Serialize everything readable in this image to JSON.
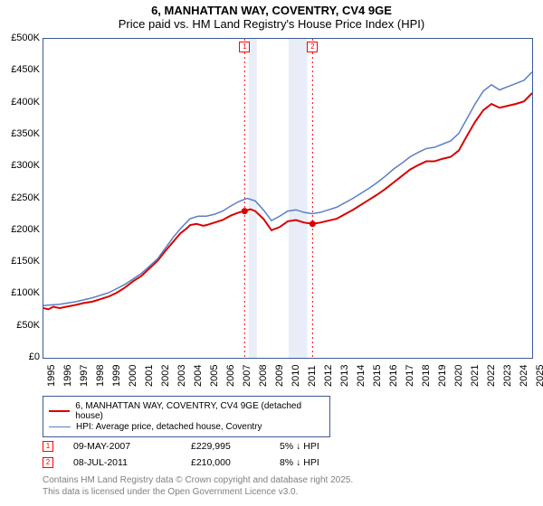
{
  "title": {
    "line1": "6, MANHATTAN WAY, COVENTRY, CV4 9GE",
    "line2": "Price paid vs. HM Land Registry's House Price Index (HPI)"
  },
  "chart": {
    "type": "line",
    "background_color": "#ffffff",
    "border_color": "#3b5998",
    "ylim": [
      0,
      500000
    ],
    "ytick_step": 50000,
    "yticks": [
      "£0",
      "£50,000",
      "£100,000",
      "£150,000",
      "£200,000",
      "£250,000",
      "£300,000",
      "£350,000",
      "£400,000",
      "£450,000",
      "£500,000"
    ],
    "yticks_short": [
      "£0",
      "£50K",
      "£100K",
      "£150K",
      "£200K",
      "£250K",
      "£300K",
      "£350K",
      "£400K",
      "£450K",
      "£500K"
    ],
    "xlim": [
      1995,
      2025
    ],
    "xtick_step": 1,
    "xticks": [
      "1995",
      "1996",
      "1997",
      "1998",
      "1999",
      "2000",
      "2001",
      "2002",
      "2003",
      "2004",
      "2005",
      "2006",
      "2007",
      "2008",
      "2009",
      "2010",
      "2011",
      "2012",
      "2013",
      "2014",
      "2015",
      "2016",
      "2017",
      "2018",
      "2019",
      "2020",
      "2021",
      "2022",
      "2023",
      "2024",
      "2025"
    ],
    "shade_bands": [
      {
        "x_from": 2007.6,
        "x_to": 2008.1,
        "color": "#e8edf7"
      },
      {
        "x_from": 2010.05,
        "x_to": 2011.2,
        "color": "#e8edf7"
      }
    ],
    "vlines": [
      {
        "x": 2007.35,
        "color": "#ff0000",
        "dash": "2,3",
        "label": "1"
      },
      {
        "x": 2011.52,
        "color": "#ff0000",
        "dash": "2,3",
        "label": "2"
      }
    ],
    "series": [
      {
        "name": "price_paid",
        "color": "#d90000",
        "width": 2,
        "label": "6, MANHATTAN WAY, COVENTRY, CV4 9GE (detached house)",
        "data": [
          [
            1995,
            78000
          ],
          [
            1995.3,
            76000
          ],
          [
            1995.6,
            80000
          ],
          [
            1996,
            78000
          ],
          [
            1996.4,
            80000
          ],
          [
            1996.8,
            82000
          ],
          [
            1997,
            83000
          ],
          [
            1997.5,
            86000
          ],
          [
            1998,
            88000
          ],
          [
            1998.5,
            92000
          ],
          [
            1999,
            96000
          ],
          [
            1999.5,
            102000
          ],
          [
            2000,
            110000
          ],
          [
            2000.5,
            120000
          ],
          [
            2001,
            128000
          ],
          [
            2001.5,
            140000
          ],
          [
            2002,
            152000
          ],
          [
            2002.5,
            168000
          ],
          [
            2003,
            183000
          ],
          [
            2003.4,
            195000
          ],
          [
            2003.8,
            203000
          ],
          [
            2004,
            208000
          ],
          [
            2004.4,
            210000
          ],
          [
            2004.8,
            207000
          ],
          [
            2005,
            208000
          ],
          [
            2005.5,
            212000
          ],
          [
            2006,
            216000
          ],
          [
            2006.5,
            223000
          ],
          [
            2007,
            228000
          ],
          [
            2007.35,
            229995
          ],
          [
            2007.7,
            233000
          ],
          [
            2008,
            230000
          ],
          [
            2008.5,
            218000
          ],
          [
            2009,
            200000
          ],
          [
            2009.5,
            205000
          ],
          [
            2010,
            214000
          ],
          [
            2010.5,
            216000
          ],
          [
            2011,
            212000
          ],
          [
            2011.52,
            210000
          ],
          [
            2012,
            212000
          ],
          [
            2012.5,
            215000
          ],
          [
            2013,
            218000
          ],
          [
            2013.5,
            225000
          ],
          [
            2014,
            232000
          ],
          [
            2014.5,
            240000
          ],
          [
            2015,
            248000
          ],
          [
            2015.5,
            256000
          ],
          [
            2016,
            265000
          ],
          [
            2016.5,
            275000
          ],
          [
            2017,
            285000
          ],
          [
            2017.5,
            295000
          ],
          [
            2018,
            302000
          ],
          [
            2018.5,
            308000
          ],
          [
            2019,
            308000
          ],
          [
            2019.5,
            312000
          ],
          [
            2020,
            315000
          ],
          [
            2020.5,
            325000
          ],
          [
            2021,
            348000
          ],
          [
            2021.5,
            370000
          ],
          [
            2022,
            388000
          ],
          [
            2022.5,
            398000
          ],
          [
            2023,
            392000
          ],
          [
            2023.5,
            395000
          ],
          [
            2024,
            398000
          ],
          [
            2024.5,
            402000
          ],
          [
            2025,
            415000
          ]
        ]
      },
      {
        "name": "hpi",
        "color": "#5a7fc4",
        "width": 1.5,
        "label": "HPI: Average price, detached house, Coventry",
        "data": [
          [
            1995,
            82000
          ],
          [
            1996,
            84000
          ],
          [
            1997,
            88000
          ],
          [
            1998,
            94000
          ],
          [
            1999,
            102000
          ],
          [
            2000,
            115000
          ],
          [
            2001,
            132000
          ],
          [
            2002,
            155000
          ],
          [
            2003,
            190000
          ],
          [
            2003.5,
            205000
          ],
          [
            2004,
            218000
          ],
          [
            2004.5,
            222000
          ],
          [
            2005,
            222000
          ],
          [
            2005.5,
            225000
          ],
          [
            2006,
            230000
          ],
          [
            2006.5,
            238000
          ],
          [
            2007,
            245000
          ],
          [
            2007.5,
            250000
          ],
          [
            2008,
            246000
          ],
          [
            2008.5,
            232000
          ],
          [
            2009,
            215000
          ],
          [
            2009.5,
            222000
          ],
          [
            2010,
            230000
          ],
          [
            2010.5,
            232000
          ],
          [
            2011,
            228000
          ],
          [
            2011.5,
            226000
          ],
          [
            2012,
            228000
          ],
          [
            2012.5,
            232000
          ],
          [
            2013,
            236000
          ],
          [
            2013.5,
            243000
          ],
          [
            2014,
            250000
          ],
          [
            2014.5,
            258000
          ],
          [
            2015,
            266000
          ],
          [
            2015.5,
            275000
          ],
          [
            2016,
            285000
          ],
          [
            2016.5,
            296000
          ],
          [
            2017,
            305000
          ],
          [
            2017.5,
            315000
          ],
          [
            2018,
            322000
          ],
          [
            2018.5,
            328000
          ],
          [
            2019,
            330000
          ],
          [
            2019.5,
            335000
          ],
          [
            2020,
            340000
          ],
          [
            2020.5,
            352000
          ],
          [
            2021,
            375000
          ],
          [
            2021.5,
            398000
          ],
          [
            2022,
            418000
          ],
          [
            2022.5,
            428000
          ],
          [
            2023,
            420000
          ],
          [
            2023.5,
            425000
          ],
          [
            2024,
            430000
          ],
          [
            2024.5,
            435000
          ],
          [
            2025,
            448000
          ]
        ]
      }
    ],
    "sale_markers": [
      {
        "x": 2007.35,
        "y": 229995,
        "color": "#d90000"
      },
      {
        "x": 2011.52,
        "y": 210000,
        "color": "#d90000"
      }
    ],
    "label_fontsize": 11
  },
  "legend": {
    "rows": [
      {
        "color": "#d90000",
        "width": 2,
        "label": "6, MANHATTAN WAY, COVENTRY, CV4 9GE (detached house)"
      },
      {
        "color": "#5a7fc4",
        "width": 1.5,
        "label": "HPI: Average price, detached house, Coventry"
      }
    ]
  },
  "annotations": [
    {
      "marker": "1",
      "date": "09-MAY-2007",
      "price": "£229,995",
      "hpi": "5% ↓ HPI"
    },
    {
      "marker": "2",
      "date": "08-JUL-2011",
      "price": "£210,000",
      "hpi": "8% ↓ HPI"
    }
  ],
  "footer": {
    "line1": "Contains HM Land Registry data © Crown copyright and database right 2025.",
    "line2": "This data is licensed under the Open Government Licence v3.0."
  }
}
